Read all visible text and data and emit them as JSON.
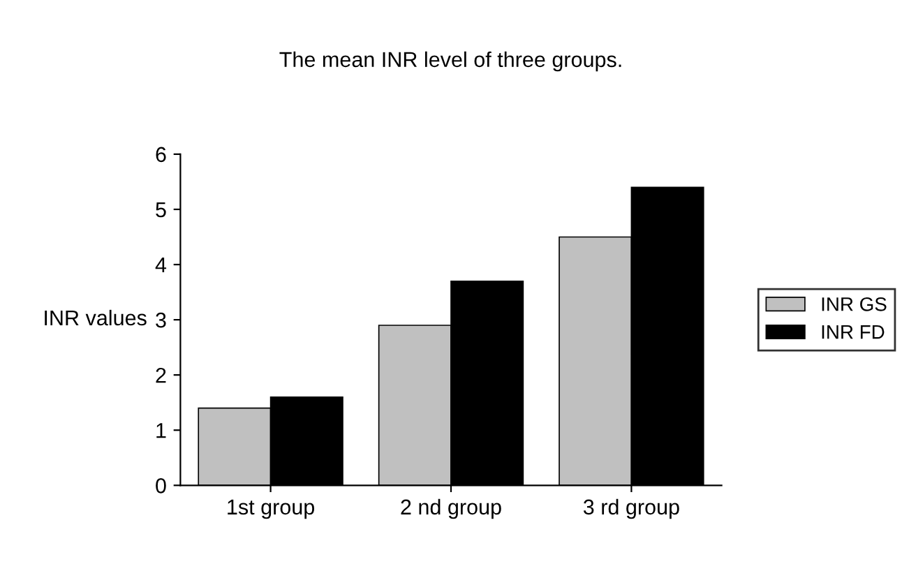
{
  "chart_data": {
    "type": "bar",
    "title": "The mean INR level of three groups.",
    "ylabel": "INR values",
    "categories": [
      "1st group",
      "2 nd group",
      "3 rd group"
    ],
    "series": [
      {
        "name": "INR GS",
        "color": "#c0c0c0",
        "values": [
          1.4,
          2.9,
          4.5
        ]
      },
      {
        "name": "INR FD",
        "color": "#000000",
        "values": [
          1.6,
          3.7,
          5.4
        ]
      }
    ],
    "ylim": [
      0,
      6
    ],
    "yticks": [
      0,
      1,
      2,
      3,
      4,
      5,
      6
    ],
    "grid": false,
    "legend": "right"
  }
}
